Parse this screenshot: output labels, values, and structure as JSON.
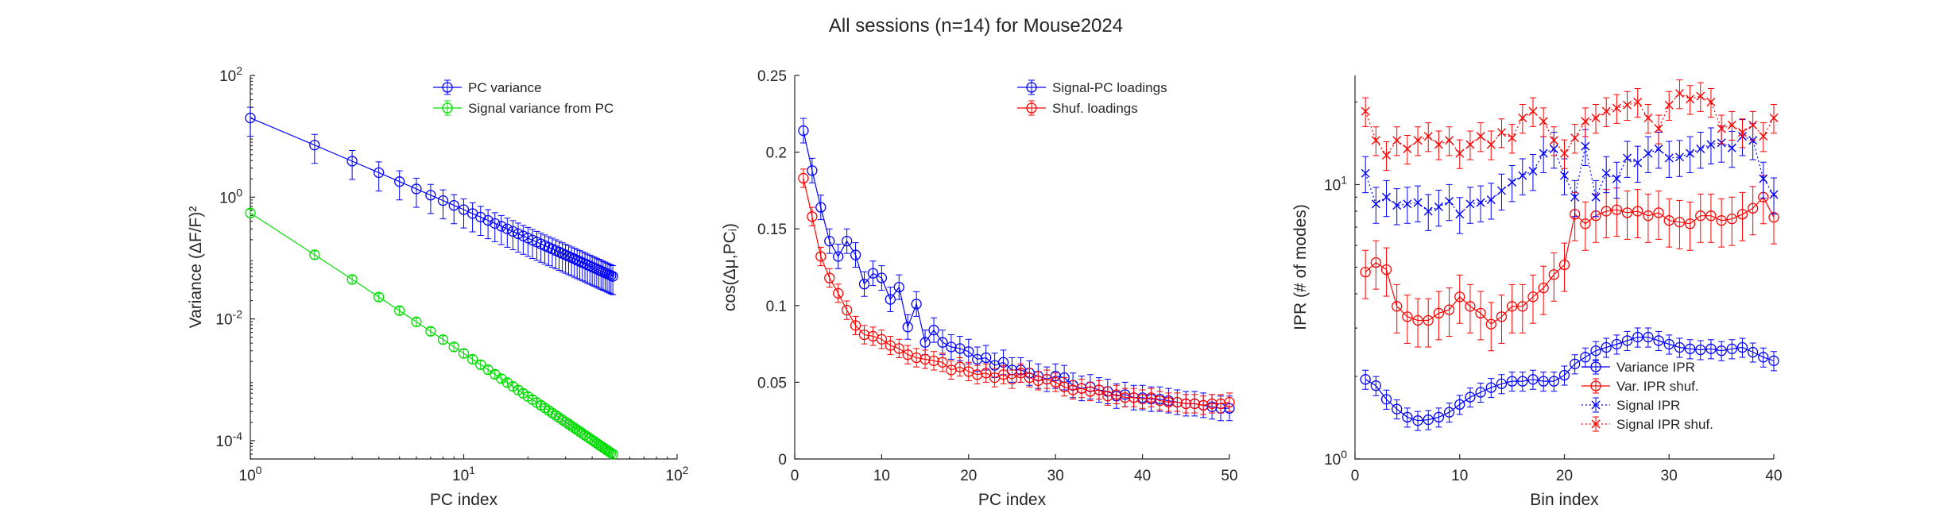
{
  "figure": {
    "title": "All sessions (n=14) for Mouse2024"
  },
  "chart_data": [
    {
      "type": "line",
      "xlabel": "PC index",
      "ylabel": "Variance (ΔF/F)²",
      "xscale": "log",
      "yscale": "log",
      "xlim": [
        1,
        100
      ],
      "ylim": [
        5e-05,
        100
      ],
      "xticks": [
        {
          "value": 1,
          "base": "10",
          "exp": "0"
        },
        {
          "value": 10,
          "base": "10",
          "exp": "1"
        },
        {
          "value": 100,
          "base": "10",
          "exp": "2"
        }
      ],
      "yticks": [
        {
          "value": 0.0001,
          "base": "10",
          "exp": "-4"
        },
        {
          "value": 0.01,
          "base": "10",
          "exp": "-2"
        },
        {
          "value": 1,
          "base": "10",
          "exp": "0"
        },
        {
          "value": 100,
          "base": "10",
          "exp": "2"
        }
      ],
      "legend": "top-right",
      "grid": false,
      "series": [
        {
          "name": "PC variance",
          "color": "#0000ff",
          "marker": "circle",
          "line": "solid",
          "model": {
            "kind": "powerlaw",
            "x0": 1,
            "x1": 50,
            "y0": 20,
            "y1": 0.05,
            "err": 0.5
          }
        },
        {
          "name": "Signal variance from PC",
          "color": "#00dd00",
          "marker": "circle",
          "line": "solid",
          "model": {
            "kind": "powerlaw",
            "x0": 1,
            "x1": 50,
            "y0": 0.55,
            "y1": 6e-05,
            "err": 0.15
          }
        }
      ]
    },
    {
      "type": "line",
      "xlabel": "PC index",
      "ylabel": "cos(Δμ,PCᵢ)",
      "xlim": [
        0,
        50
      ],
      "ylim": [
        0,
        0.25
      ],
      "xticks": [
        0,
        10,
        20,
        30,
        40,
        50
      ],
      "yticks": [
        0,
        0.05,
        0.1,
        0.15,
        0.2,
        0.25
      ],
      "ytick_labels": [
        "0",
        "0.05",
        "0.1",
        "0.15",
        "0.2",
        "0.25"
      ],
      "legend": "top-right",
      "grid": false,
      "series": [
        {
          "name": "Signal-PC loadings",
          "color": "#0000ff",
          "marker": "circle",
          "line": "solid",
          "x": [
            1,
            2,
            3,
            4,
            5,
            6,
            7,
            8,
            9,
            10,
            11,
            12,
            13,
            14,
            15,
            16,
            17,
            18,
            19,
            20,
            21,
            22,
            23,
            24,
            25,
            26,
            27,
            28,
            29,
            30,
            31,
            32,
            33,
            34,
            35,
            36,
            37,
            38,
            39,
            40,
            41,
            42,
            43,
            44,
            45,
            46,
            47,
            48,
            49,
            50
          ],
          "y": [
            0.214,
            0.188,
            0.164,
            0.142,
            0.132,
            0.142,
            0.133,
            0.114,
            0.121,
            0.118,
            0.104,
            0.112,
            0.086,
            0.101,
            0.076,
            0.084,
            0.076,
            0.073,
            0.072,
            0.07,
            0.065,
            0.066,
            0.061,
            0.063,
            0.058,
            0.058,
            0.056,
            0.054,
            0.052,
            0.054,
            0.053,
            0.048,
            0.046,
            0.047,
            0.045,
            0.044,
            0.041,
            0.042,
            0.04,
            0.04,
            0.039,
            0.039,
            0.038,
            0.037,
            0.036,
            0.036,
            0.035,
            0.034,
            0.033,
            0.033
          ],
          "err": 0.008
        },
        {
          "name": "Shuf. loadings",
          "color": "#ff0000",
          "marker": "circle",
          "line": "solid",
          "x": [
            1,
            2,
            3,
            4,
            5,
            6,
            7,
            8,
            9,
            10,
            11,
            12,
            13,
            14,
            15,
            16,
            17,
            18,
            19,
            20,
            21,
            22,
            23,
            24,
            25,
            26,
            27,
            28,
            29,
            30,
            31,
            32,
            33,
            34,
            35,
            36,
            37,
            38,
            39,
            40,
            41,
            42,
            43,
            44,
            45,
            46,
            47,
            48,
            49,
            50
          ],
          "y": [
            0.183,
            0.158,
            0.132,
            0.118,
            0.108,
            0.097,
            0.087,
            0.081,
            0.08,
            0.078,
            0.074,
            0.072,
            0.068,
            0.066,
            0.065,
            0.064,
            0.063,
            0.058,
            0.06,
            0.057,
            0.055,
            0.056,
            0.053,
            0.055,
            0.052,
            0.056,
            0.053,
            0.051,
            0.052,
            0.05,
            0.047,
            0.045,
            0.046,
            0.044,
            0.045,
            0.041,
            0.042,
            0.04,
            0.04,
            0.039,
            0.04,
            0.038,
            0.037,
            0.037,
            0.036,
            0.036,
            0.035,
            0.036,
            0.036,
            0.037
          ],
          "err": 0.006
        }
      ]
    },
    {
      "type": "line",
      "xlabel": "Bin index",
      "ylabel": "IPR (# of modes)",
      "yscale": "log",
      "xlim": [
        0,
        40
      ],
      "ylim": [
        1,
        25
      ],
      "xticks": [
        0,
        10,
        20,
        30,
        40
      ],
      "yticks": [
        {
          "value": 1,
          "base": "10",
          "exp": "0"
        },
        {
          "value": 10,
          "base": "10",
          "exp": "1"
        }
      ],
      "legend": "bottom-right",
      "grid": false,
      "series": [
        {
          "name": "Variance IPR",
          "color": "#0000ff",
          "marker": "circle",
          "line": "solid",
          "x": [
            1,
            2,
            3,
            4,
            5,
            6,
            7,
            8,
            9,
            10,
            11,
            12,
            13,
            14,
            15,
            16,
            17,
            18,
            19,
            20,
            21,
            22,
            23,
            24,
            25,
            26,
            27,
            28,
            29,
            30,
            31,
            32,
            33,
            34,
            35,
            36,
            37,
            38,
            39,
            40
          ],
          "y": [
            1.95,
            1.85,
            1.65,
            1.52,
            1.42,
            1.38,
            1.39,
            1.42,
            1.48,
            1.58,
            1.68,
            1.75,
            1.82,
            1.88,
            1.92,
            1.92,
            1.95,
            1.92,
            1.92,
            2.02,
            2.22,
            2.35,
            2.48,
            2.55,
            2.62,
            2.7,
            2.78,
            2.78,
            2.7,
            2.62,
            2.55,
            2.52,
            2.5,
            2.52,
            2.48,
            2.52,
            2.55,
            2.45,
            2.35,
            2.28
          ],
          "err_frac": 0.08
        },
        {
          "name": "Var. IPR shuf.",
          "color": "#ff0000",
          "marker": "circle",
          "line": "solid",
          "x": [
            1,
            2,
            3,
            4,
            5,
            6,
            7,
            8,
            9,
            10,
            11,
            12,
            13,
            14,
            15,
            16,
            17,
            18,
            19,
            20,
            21,
            22,
            23,
            24,
            25,
            26,
            27,
            28,
            29,
            30,
            31,
            32,
            33,
            34,
            35,
            36,
            37,
            38,
            39,
            40
          ],
          "y": [
            4.8,
            5.2,
            4.9,
            3.6,
            3.3,
            3.2,
            3.2,
            3.4,
            3.5,
            3.9,
            3.6,
            3.4,
            3.1,
            3.3,
            3.6,
            3.6,
            3.9,
            4.2,
            4.7,
            5.1,
            7.8,
            7.2,
            7.7,
            8.0,
            8.1,
            7.9,
            8.0,
            7.7,
            7.9,
            7.4,
            7.3,
            7.2,
            7.7,
            7.7,
            7.4,
            7.5,
            7.8,
            8.2,
            9.0,
            7.6
          ],
          "err_frac": 0.2
        },
        {
          "name": "Signal IPR",
          "color": "#0000ff",
          "marker": "x",
          "line": "dotted",
          "x": [
            1,
            2,
            3,
            4,
            5,
            6,
            7,
            8,
            9,
            10,
            11,
            12,
            13,
            14,
            15,
            16,
            17,
            18,
            19,
            20,
            21,
            22,
            23,
            24,
            25,
            26,
            27,
            28,
            29,
            30,
            31,
            32,
            33,
            34,
            35,
            36,
            37,
            38,
            39,
            40
          ],
          "y": [
            11.0,
            8.5,
            9.0,
            8.4,
            8.5,
            8.6,
            8.0,
            8.3,
            8.7,
            7.8,
            8.5,
            8.6,
            8.8,
            9.5,
            10.2,
            10.8,
            11.2,
            13.0,
            13.5,
            10.8,
            9.0,
            13.8,
            9.0,
            11.0,
            10.5,
            12.5,
            12.0,
            13.0,
            13.5,
            12.5,
            12.6,
            13.0,
            13.5,
            14.0,
            14.2,
            13.6,
            15.0,
            14.5,
            10.5,
            9.2
          ],
          "err_frac": 0.15
        },
        {
          "name": "Signal IPR shuf.",
          "color": "#ff0000",
          "marker": "x",
          "line": "dotted",
          "x": [
            1,
            2,
            3,
            4,
            5,
            6,
            7,
            8,
            9,
            10,
            11,
            12,
            13,
            14,
            15,
            16,
            17,
            18,
            19,
            20,
            21,
            22,
            23,
            24,
            25,
            26,
            27,
            28,
            29,
            30,
            31,
            32,
            33,
            34,
            35,
            36,
            37,
            38,
            39,
            40
          ],
          "y": [
            18.5,
            14.5,
            12.8,
            14.5,
            13.5,
            14.5,
            15.0,
            14.0,
            14.5,
            13.0,
            14.0,
            15.0,
            14.0,
            15.5,
            14.8,
            17.5,
            18.5,
            17.0,
            14.5,
            13.0,
            14.8,
            17.0,
            17.5,
            18.5,
            19.0,
            19.5,
            20.0,
            17.5,
            16.0,
            19.5,
            21.5,
            20.5,
            21.0,
            20.0,
            16.0,
            16.5,
            15.5,
            16.5,
            15.0,
            17.5
          ],
          "err_frac": 0.12
        }
      ]
    }
  ]
}
